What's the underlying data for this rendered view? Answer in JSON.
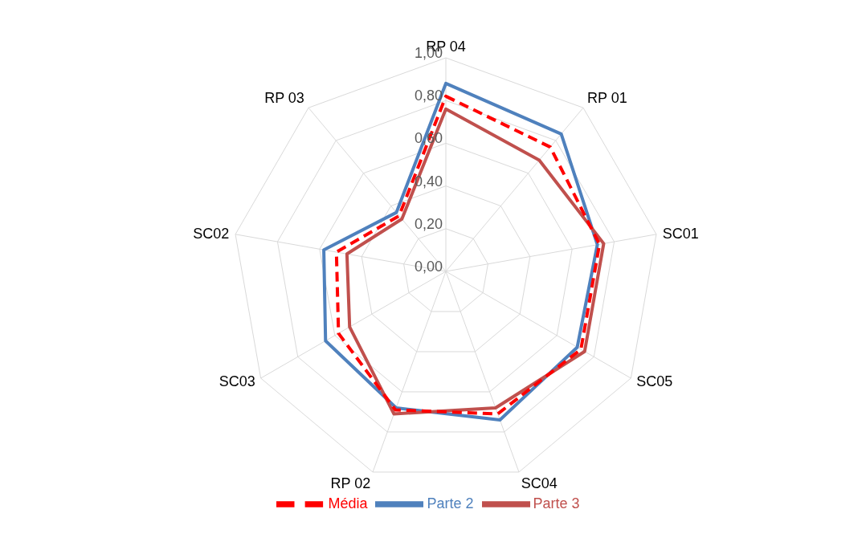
{
  "chart_data": {
    "type": "radar",
    "categories": [
      "RP 04",
      "RP 01",
      "SC01",
      "SC05",
      "SC04",
      "RP 02",
      "SC03",
      "SC02",
      "RP 03"
    ],
    "series": [
      {
        "name": "Parte 2",
        "color": "#4f81bd",
        "line_style": "solid",
        "values": [
          0.88,
          0.84,
          0.72,
          0.71,
          0.74,
          0.68,
          0.65,
          0.58,
          0.36
        ]
      },
      {
        "name": "Parte 3",
        "color": "#c0504d",
        "line_style": "solid",
        "values": [
          0.76,
          0.68,
          0.75,
          0.75,
          0.68,
          0.71,
          0.52,
          0.47,
          0.32
        ]
      },
      {
        "name": "Média",
        "color": "#ff0000",
        "line_style": "dashed",
        "values": [
          0.82,
          0.76,
          0.73,
          0.73,
          0.71,
          0.69,
          0.58,
          0.52,
          0.34
        ]
      }
    ],
    "ylim": [
      0,
      1
    ],
    "yticks": [
      {
        "value": 0,
        "label": "0,00"
      },
      {
        "value": 0.2,
        "label": "0,20"
      },
      {
        "value": 0.4,
        "label": "0,40"
      },
      {
        "value": 0.6,
        "label": "0,60"
      },
      {
        "value": 0.8,
        "label": "0,80"
      },
      {
        "value": 1,
        "label": "1,00"
      }
    ],
    "grid": true,
    "marker": "none",
    "legend": "bottom"
  }
}
